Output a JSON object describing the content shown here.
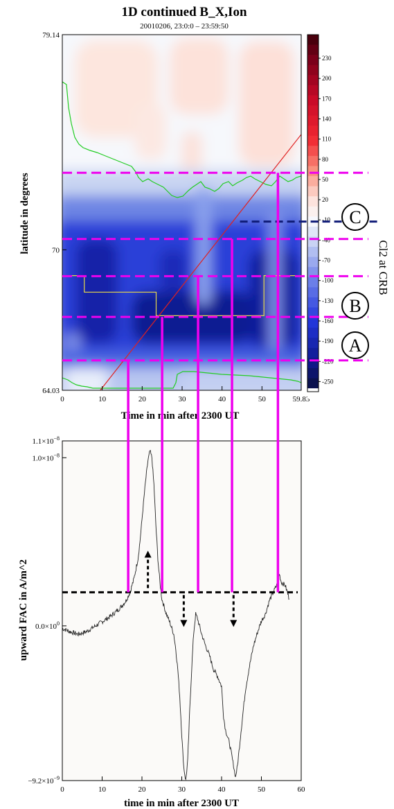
{
  "chart_data": [
    {
      "type": "heatmap",
      "title": "1D continued B_X,Ion",
      "subtitle": "20010206, 23:0:0 – 23:59:50",
      "xlabel": "Time in min after 2300 UT",
      "ylabel": "latitude in degrees",
      "xlim": [
        0,
        59.83
      ],
      "ylim": [
        64.03,
        79.14
      ],
      "x_ticks": [
        "0",
        "10",
        "20",
        "30",
        "40",
        "50",
        "59.83"
      ],
      "y_ticks": [
        "64.03",
        "70",
        "79.14"
      ],
      "colorbar_ticks": [
        "230",
        "200",
        "170",
        "140",
        "110",
        "80",
        "50",
        "20",
        "-10",
        "-40",
        "-70",
        "-100",
        "-130",
        "-160",
        "-190",
        "-220",
        "-250"
      ],
      "colorbar_range": [
        -265,
        265
      ],
      "colors": {
        "green_contour": "#22cc22",
        "yellow_line": "#e8d84a",
        "red_track": "#e02020",
        "magenta": "#ee00ee",
        "navy_dashed": "#101c78"
      },
      "red_track": {
        "x": [
          9.5,
          59.83
        ],
        "y": [
          64.03,
          74.9
        ]
      },
      "yellow_line": {
        "x": [
          0,
          5.5,
          5.5,
          23.5,
          23.5,
          50.5,
          50.5,
          59.83
        ],
        "y": [
          68.9,
          68.9,
          68.2,
          68.2,
          67.2,
          67.2,
          68.9,
          68.9
        ]
      },
      "magenta_levels": [
        {
          "lat": 73.27,
          "x_end": 54.0
        },
        {
          "lat": 70.46,
          "x_end": 42.5
        },
        {
          "lat": 68.88,
          "x_end": 34.0
        },
        {
          "lat": 67.15,
          "x_end": 25.0
        },
        {
          "lat": 65.3,
          "x_end": 16.5
        }
      ],
      "cl2_boundary_lat": 71.2,
      "region_labels": [
        "C",
        "B",
        "A"
      ],
      "side_label": "Cl2 at CRB"
    },
    {
      "type": "line",
      "xlabel": "time in min after 2300 UT",
      "ylabel": "upward FAC in A/m^2",
      "xlim": [
        0,
        60
      ],
      "ylim": [
        -9.2e-09,
        1.1e-08
      ],
      "x_ticks": [
        "0",
        "10",
        "20",
        "30",
        "40",
        "50",
        "60"
      ],
      "y_ticks": [
        {
          "value": 1.1e-08,
          "mant": "1.1×10",
          "exp": "−8"
        },
        {
          "value": 1e-08,
          "mant": "1.0×10",
          "exp": "−8"
        },
        {
          "value": 0,
          "mant": "0.0×10",
          "exp": "0"
        },
        {
          "value": -9.2e-09,
          "mant": "−9.2×10",
          "exp": "−9"
        }
      ],
      "threshold": 2e-09,
      "x": [
        0,
        2,
        4,
        6,
        8,
        10,
        12,
        14,
        15,
        16,
        17,
        18,
        19,
        19.5,
        20,
        20.5,
        21,
        21.5,
        22,
        22.5,
        23,
        23.5,
        24,
        24.5,
        25,
        26,
        27,
        28,
        28.5,
        29,
        29.5,
        30,
        30.5,
        31,
        31.5,
        32,
        32.5,
        33,
        33.5,
        34,
        35,
        36,
        37,
        38,
        39,
        40,
        40.5,
        41,
        42,
        43,
        43.5,
        44,
        45,
        46,
        47,
        48,
        49,
        50,
        51,
        52,
        53,
        54,
        54.5,
        55,
        56,
        57
      ],
      "y": [
        -0.15,
        -0.35,
        -0.5,
        -0.35,
        -0.05,
        0.25,
        0.55,
        0.95,
        1.2,
        1.5,
        2.0,
        2.8,
        4.0,
        5.0,
        6.3,
        7.6,
        8.8,
        9.8,
        10.4,
        10.0,
        8.4,
        6.0,
        4.0,
        2.6,
        1.6,
        0.8,
        0.2,
        -0.5,
        -1.4,
        -2.6,
        -4.2,
        -6.5,
        -8.4,
        -9.2,
        -8.0,
        -5.0,
        -2.5,
        -0.4,
        0.7,
        0.4,
        -0.5,
        -1.2,
        -1.8,
        -2.6,
        -3.0,
        -3.6,
        -5.4,
        -6.2,
        -7.0,
        -8.3,
        -9.0,
        -8.3,
        -6.0,
        -3.8,
        -2.4,
        -1.2,
        -0.4,
        0.3,
        0.7,
        1.5,
        2.0,
        2.5,
        3.1,
        2.6,
        2.4,
        1.6
      ],
      "markers": {
        "vertical_lines_x": [
          16.5,
          25.0,
          34.0,
          42.5,
          54.0
        ],
        "arrow_up_x": 21.5,
        "arrows_down_x": [
          30.5,
          43.0
        ]
      }
    }
  ]
}
